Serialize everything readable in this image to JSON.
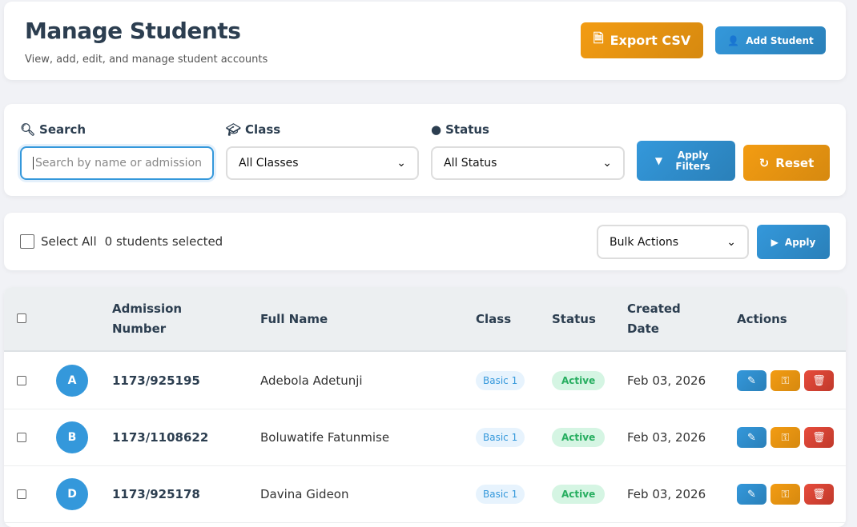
{
  "header": {
    "title": "Manage Students",
    "subtitle": "View, add, edit, and manage student accounts",
    "export_label": "Export CSV",
    "add_label": "Add Student"
  },
  "filters": {
    "search_label": "Search",
    "search_placeholder": "Search by name or admission n",
    "class_label": "Class",
    "class_value": "All Classes",
    "status_label": "Status",
    "status_value": "All Status",
    "apply_label": "Apply Filters",
    "reset_label": "Reset"
  },
  "bulk": {
    "select_all": "Select All",
    "selected": "0 students selected",
    "action_value": "Bulk Actions",
    "apply_label": "Apply"
  },
  "table": {
    "headers": [
      "Admission Number",
      "Full Name",
      "Class",
      "Status",
      "Created Date",
      "Actions"
    ],
    "rows": [
      {
        "initial": "A",
        "admission": "1173/925195",
        "name": "Adebola Adetunji",
        "class": "Basic 1",
        "status": "Active",
        "created": "Feb 03, 2026"
      },
      {
        "initial": "B",
        "admission": "1173/1108622",
        "name": "Boluwatife Fatunmise",
        "class": "Basic 1",
        "status": "Active",
        "created": "Feb 03, 2026"
      },
      {
        "initial": "D",
        "admission": "1173/925178",
        "name": "Davina Gideon",
        "class": "Basic 1",
        "status": "Active",
        "created": "Feb 03, 2026"
      }
    ]
  },
  "colors": {
    "primary": "#3498db",
    "warning": "#f39c12",
    "danger": "#e74c3c",
    "success": "#27ae60"
  }
}
